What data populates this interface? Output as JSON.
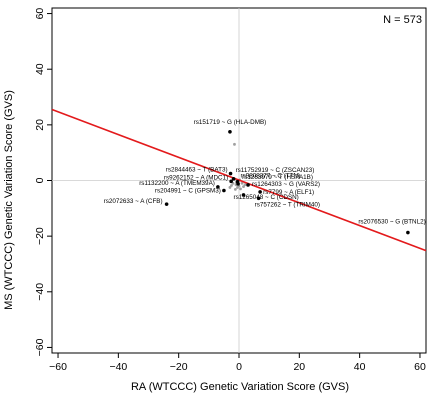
{
  "chart_data": {
    "type": "scatter",
    "title": "",
    "annotation_top_right": "N = 573",
    "xlabel": "RA (WTCCC) Genetic Variation Score (GVS)",
    "ylabel": "MS (WTCCC) Genetic Variation Score (GVS)",
    "xlim": [
      -62,
      62
    ],
    "ylim": [
      -62,
      62
    ],
    "xticks": [
      -60,
      -40,
      -20,
      0,
      20,
      40,
      60
    ],
    "yticks": [
      -60,
      -40,
      -20,
      0,
      20,
      40,
      60
    ],
    "xtick_labels": [
      "−60",
      "−40",
      "−20",
      "0",
      "20",
      "40",
      "60"
    ],
    "ytick_labels": [
      "−60",
      "−40",
      "−20",
      "0",
      "20",
      "40",
      "60"
    ],
    "grid": false,
    "reference_lines": [
      {
        "axis": "x",
        "value": 0
      },
      {
        "axis": "y",
        "value": 0
      }
    ],
    "regression_line": {
      "x": [
        -62,
        62
      ],
      "y": [
        25.5,
        -25.2
      ],
      "color": "#e31a1c"
    },
    "point_color": "#000000",
    "background_point_color": "#a0a0a0",
    "labeled_points": [
      {
        "label": "rs151719 ~ G (HLA-DMB)",
        "x": -3,
        "y": 17.5
      },
      {
        "label": "rs2844463 ~ T (BAT3)",
        "x": -2.8,
        "y": 2.5
      },
      {
        "label": "rs11752919 ~ C (ZSCAN23)",
        "x": -1.8,
        "y": 0.6
      },
      {
        "label": "rs9808377 ~ C (TTN)",
        "x": -0.5,
        "y": -0.4
      },
      {
        "label": "rs9262152 ~ A (MDC1)",
        "x": -2.6,
        "y": -0.3
      },
      {
        "label": "rs1263979 ~ T (HSPA1B)",
        "x": -0.3,
        "y": -1.2
      },
      {
        "label": "rs1132200 ~ A (TMEM39A)",
        "x": -7,
        "y": -2.3
      },
      {
        "label": "rs1264303 ~ G (VARS2)",
        "x": 3,
        "y": -1.6
      },
      {
        "label": "rs204991 ~ C (GPSM3)",
        "x": -5,
        "y": -3.6
      },
      {
        "label": "rs7799 ~ A (ELF1)",
        "x": 7,
        "y": -4.1
      },
      {
        "label": "rs2072633 ~ A (CFB)",
        "x": -24,
        "y": -8.5
      },
      {
        "label": "rs1265048 ~ C (CDSN)",
        "x": 1.5,
        "y": -5.2
      },
      {
        "label": "rs757262 ~ T (TRIM40)",
        "x": 6.5,
        "y": -6.4
      },
      {
        "label": "rs2076530 ~ G (BTNL2)",
        "x": 56,
        "y": -18.7
      }
    ],
    "background_points": [
      {
        "x": -1.5,
        "y": 13
      },
      {
        "x": -2,
        "y": -1
      },
      {
        "x": -1,
        "y": -1.5
      },
      {
        "x": 0,
        "y": -2
      },
      {
        "x": -3,
        "y": -2.5
      },
      {
        "x": 1,
        "y": -1
      },
      {
        "x": -1.5,
        "y": 0.5
      },
      {
        "x": 0.5,
        "y": -3
      },
      {
        "x": -0.5,
        "y": -2.5
      },
      {
        "x": -2.5,
        "y": -1.8
      },
      {
        "x": 1.5,
        "y": -2.2
      },
      {
        "x": 0.2,
        "y": 0.2
      },
      {
        "x": -0.8,
        "y": -0.7
      },
      {
        "x": 2,
        "y": -1.5
      },
      {
        "x": -1.2,
        "y": -3.2
      }
    ]
  }
}
